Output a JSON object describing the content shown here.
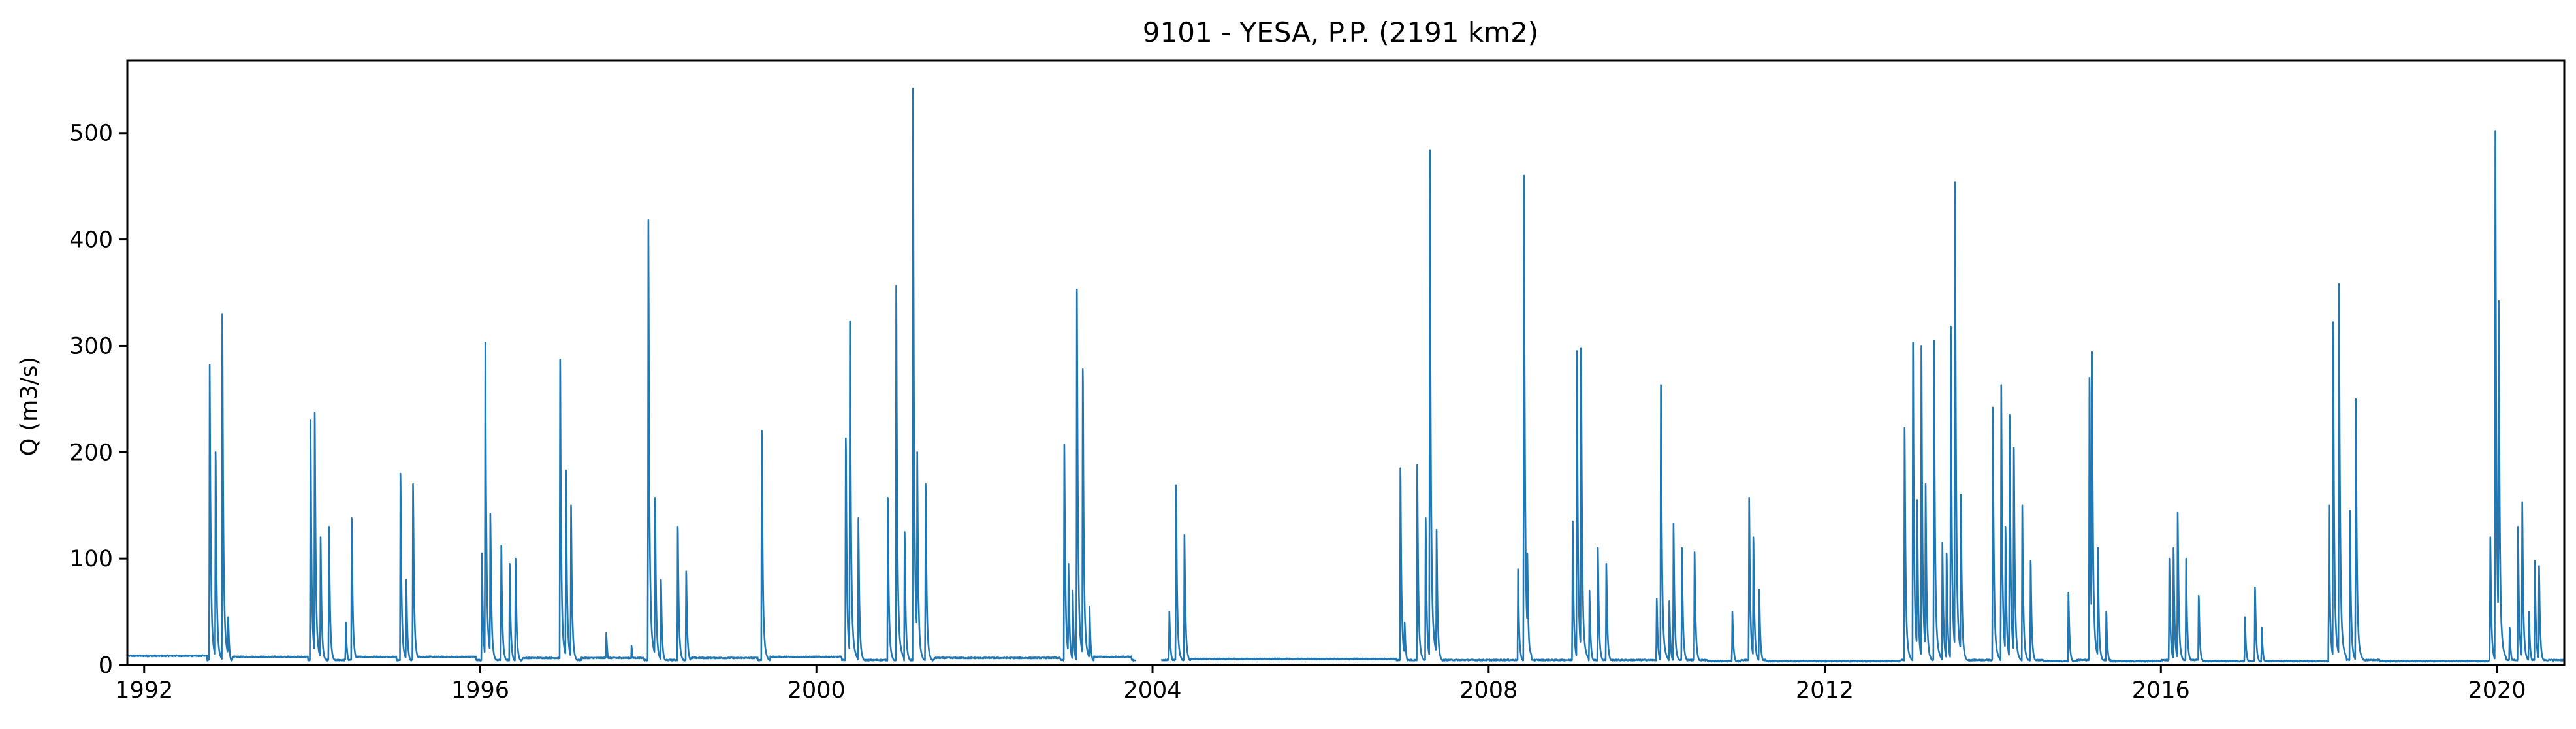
{
  "chart_data": {
    "type": "line",
    "title": "9101 - YESA, P.P. (2191 km2)",
    "xlabel": "",
    "ylabel": "Q (m3/s)",
    "xlim": [
      1991.8,
      2020.8
    ],
    "ylim": [
      0,
      568
    ],
    "x_ticks": [
      "1992",
      "1996",
      "2000",
      "2004",
      "2008",
      "2012",
      "2016",
      "2020"
    ],
    "y_ticks": [
      "0",
      "100",
      "200",
      "300",
      "400",
      "500"
    ],
    "grid": false,
    "legend": "none",
    "line_color": "#1f77b4",
    "series": [
      {
        "x_unit": "year",
        "y_unit": "m3/s",
        "baseflow_segments": [
          {
            "from": 1991.8,
            "to": 1992.75,
            "level": 8
          },
          {
            "from": 1993.05,
            "to": 1993.95,
            "level": 7
          },
          {
            "from": 1994.5,
            "to": 1995.0,
            "level": 7
          },
          {
            "from": 1995.25,
            "to": 1995.95,
            "level": 7
          },
          {
            "from": 1996.5,
            "to": 1996.95,
            "level": 6
          },
          {
            "from": 1997.2,
            "to": 1997.95,
            "level": 6
          },
          {
            "from": 1998.5,
            "to": 1999.3,
            "level": 6
          },
          {
            "from": 1999.45,
            "to": 2000.3,
            "level": 7
          },
          {
            "from": 2001.4,
            "to": 2002.9,
            "level": 6
          },
          {
            "from": 2003.3,
            "to": 2003.75,
            "level": 7
          },
          {
            "from": 2004.45,
            "to": 2006.9,
            "level": 5
          },
          {
            "from": 2007.4,
            "to": 2008.3,
            "level": 4
          },
          {
            "from": 2008.5,
            "to": 2009.0,
            "level": 4
          },
          {
            "from": 2010.6,
            "to": 2011.0,
            "level": 3
          },
          {
            "from": 2011.3,
            "to": 2012.9,
            "level": 3
          },
          {
            "from": 2014.6,
            "to": 2015.0,
            "level": 3
          },
          {
            "from": 2015.4,
            "to": 2016.0,
            "level": 3
          },
          {
            "from": 2016.5,
            "to": 2018.0,
            "level": 3
          },
          {
            "from": 2018.6,
            "to": 2019.9,
            "level": 3
          },
          {
            "from": 2020.5,
            "to": 2020.8,
            "level": 4
          }
        ],
        "gaps": [
          [
            2003.8,
            2004.1
          ]
        ],
        "peaks": [
          [
            1992.78,
            282
          ],
          [
            1992.85,
            200
          ],
          [
            1992.93,
            330
          ],
          [
            1993.0,
            45
          ],
          [
            1993.98,
            230
          ],
          [
            1994.03,
            237
          ],
          [
            1994.1,
            120
          ],
          [
            1994.2,
            130
          ],
          [
            1994.4,
            40
          ],
          [
            1994.47,
            138
          ],
          [
            1995.05,
            180
          ],
          [
            1995.12,
            80
          ],
          [
            1995.2,
            170
          ],
          [
            1996.02,
            105
          ],
          [
            1996.06,
            303
          ],
          [
            1996.12,
            142
          ],
          [
            1996.25,
            112
          ],
          [
            1996.35,
            95
          ],
          [
            1996.42,
            100
          ],
          [
            1996.95,
            287
          ],
          [
            1997.02,
            183
          ],
          [
            1997.08,
            150
          ],
          [
            1997.5,
            30
          ],
          [
            1997.8,
            18
          ],
          [
            1998.0,
            418
          ],
          [
            1998.08,
            157
          ],
          [
            1998.15,
            80
          ],
          [
            1998.35,
            130
          ],
          [
            1998.45,
            88
          ],
          [
            1999.35,
            220
          ],
          [
            2000.35,
            213
          ],
          [
            2000.4,
            323
          ],
          [
            2000.5,
            138
          ],
          [
            2000.85,
            157
          ],
          [
            2000.95,
            356
          ],
          [
            2001.05,
            125
          ],
          [
            2001.15,
            542
          ],
          [
            2001.2,
            200
          ],
          [
            2001.3,
            170
          ],
          [
            2002.95,
            207
          ],
          [
            2003.0,
            95
          ],
          [
            2003.05,
            70
          ],
          [
            2003.1,
            353
          ],
          [
            2003.17,
            278
          ],
          [
            2003.25,
            55
          ],
          [
            2004.2,
            50
          ],
          [
            2004.28,
            169
          ],
          [
            2004.38,
            122
          ],
          [
            2006.95,
            185
          ],
          [
            2007.0,
            40
          ],
          [
            2007.15,
            188
          ],
          [
            2007.25,
            138
          ],
          [
            2007.3,
            484
          ],
          [
            2007.38,
            127
          ],
          [
            2008.35,
            90
          ],
          [
            2008.42,
            460
          ],
          [
            2008.46,
            105
          ],
          [
            2009.0,
            135
          ],
          [
            2009.05,
            295
          ],
          [
            2009.1,
            298
          ],
          [
            2009.2,
            70
          ],
          [
            2009.3,
            110
          ],
          [
            2009.4,
            95
          ],
          [
            2010.0,
            62
          ],
          [
            2010.05,
            263
          ],
          [
            2010.15,
            60
          ],
          [
            2010.2,
            133
          ],
          [
            2010.3,
            110
          ],
          [
            2010.45,
            106
          ],
          [
            2010.9,
            50
          ],
          [
            2011.1,
            157
          ],
          [
            2011.15,
            120
          ],
          [
            2011.22,
            71
          ],
          [
            2012.95,
            223
          ],
          [
            2013.05,
            303
          ],
          [
            2013.1,
            155
          ],
          [
            2013.15,
            300
          ],
          [
            2013.2,
            170
          ],
          [
            2013.3,
            305
          ],
          [
            2013.4,
            115
          ],
          [
            2013.45,
            105
          ],
          [
            2013.5,
            318
          ],
          [
            2013.55,
            454
          ],
          [
            2013.62,
            160
          ],
          [
            2014.0,
            242
          ],
          [
            2014.1,
            263
          ],
          [
            2014.15,
            130
          ],
          [
            2014.2,
            235
          ],
          [
            2014.25,
            204
          ],
          [
            2014.35,
            150
          ],
          [
            2014.45,
            98
          ],
          [
            2014.9,
            68
          ],
          [
            2015.15,
            270
          ],
          [
            2015.18,
            294
          ],
          [
            2015.25,
            110
          ],
          [
            2015.35,
            50
          ],
          [
            2016.1,
            100
          ],
          [
            2016.15,
            110
          ],
          [
            2016.2,
            143
          ],
          [
            2016.3,
            100
          ],
          [
            2016.45,
            65
          ],
          [
            2017.0,
            45
          ],
          [
            2017.12,
            73
          ],
          [
            2017.2,
            35
          ],
          [
            2018.0,
            150
          ],
          [
            2018.05,
            322
          ],
          [
            2018.12,
            358
          ],
          [
            2018.25,
            145
          ],
          [
            2018.32,
            250
          ],
          [
            2019.92,
            120
          ],
          [
            2019.98,
            502
          ],
          [
            2020.02,
            342
          ],
          [
            2020.15,
            35
          ],
          [
            2020.25,
            130
          ],
          [
            2020.3,
            153
          ],
          [
            2020.38,
            50
          ],
          [
            2020.45,
            98
          ],
          [
            2020.5,
            93
          ]
        ]
      }
    ]
  }
}
